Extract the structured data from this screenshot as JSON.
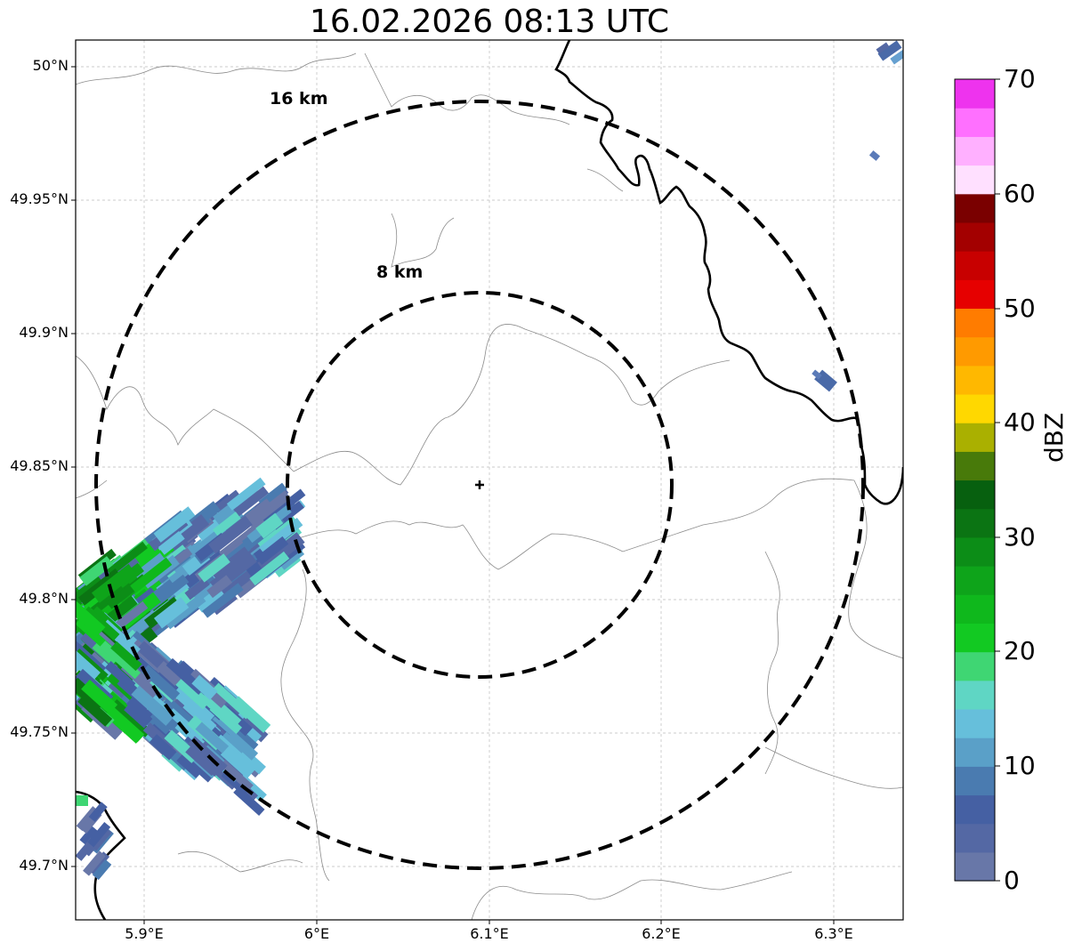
{
  "title": "16.02.2026 08:13 UTC",
  "axes": {
    "x_ticks": [
      "5.9°E",
      "6°E",
      "6.1°E",
      "6.2°E",
      "6.3°E"
    ],
    "y_ticks": [
      "50°N",
      "49.95°N",
      "49.9°N",
      "49.85°N",
      "49.8°N",
      "49.75°N",
      "49.7°N"
    ],
    "grid": "dashed-light-gray"
  },
  "rings": [
    {
      "label": "8 km"
    },
    {
      "label": "16 km"
    }
  ],
  "colorbar": {
    "label": "dBZ",
    "ticks": [
      "0",
      "10",
      "20",
      "30",
      "40",
      "50",
      "60",
      "70"
    ],
    "colors": [
      "#6877a8",
      "#5468a4",
      "#4560a3",
      "#4a7bb0",
      "#5aa0c8",
      "#66bfdb",
      "#5fd6c4",
      "#3fd673",
      "#12c922",
      "#0fb81c",
      "#0ea41a",
      "#0c8d17",
      "#0b7413",
      "#07600f",
      "#487a0a",
      "#aab000",
      "#ffd800",
      "#ffb800",
      "#ff9a00",
      "#ff7c00",
      "#e60000",
      "#c80000",
      "#a30000",
      "#7a0000",
      "#ffe0ff",
      "#ffb0ff",
      "#ff70ff",
      "#ee33ee"
    ]
  },
  "colors": {
    "rings": "#000000",
    "border_line": "#000000",
    "admin_line": "#8c8c8c"
  }
}
